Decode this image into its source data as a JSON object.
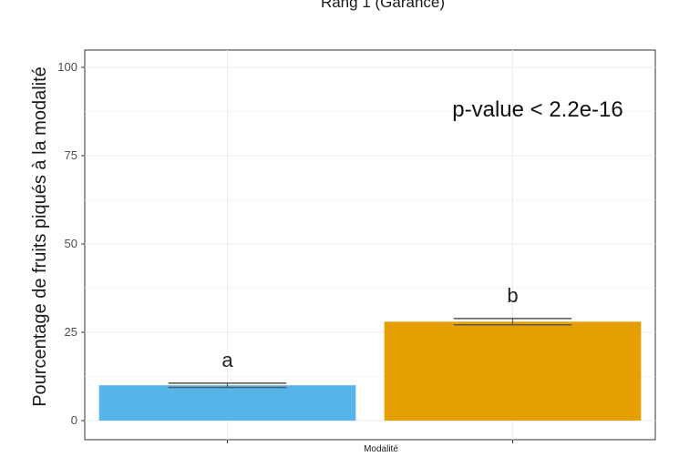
{
  "chart_data": {
    "type": "bar",
    "title": "Rang 1 (Garance)",
    "xlabel": "Modalité",
    "ylabel": "Pourcentage de fruits piqués à la modalité",
    "ylim": [
      0,
      100
    ],
    "yticks": [
      0,
      25,
      50,
      75,
      100
    ],
    "categories": [
      "",
      ""
    ],
    "values": [
      10,
      28
    ],
    "errors": [
      0.6,
      0.9
    ],
    "colors": [
      "#56B4E9",
      "#E69F00"
    ],
    "letters": [
      "a",
      "b"
    ],
    "annotation": "p-value < 2.2e-16",
    "grid": true
  }
}
